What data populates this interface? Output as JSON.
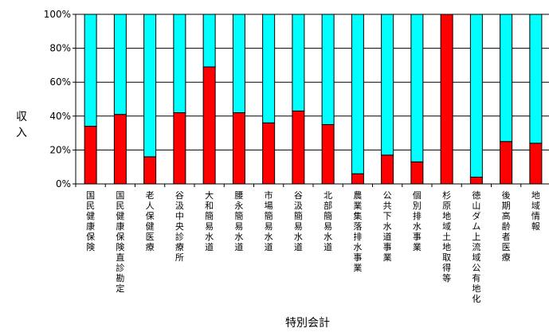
{
  "chart_data": {
    "type": "bar",
    "stacked": true,
    "percent": true,
    "ylabel": "収入",
    "xlabel": "特別会計",
    "ylim": [
      0,
      100
    ],
    "yticks": [
      "0%",
      "20%",
      "40%",
      "60%",
      "80%",
      "100%"
    ],
    "grid": true,
    "categories": [
      "国民健康保険",
      "国民健康保険直診勘定",
      "老人保健医療",
      "谷汲中央診療所",
      "大和簡易水道",
      "腰永簡易水道",
      "市場簡易水道",
      "谷汲簡易水道",
      "北部簡易水道",
      "農業集落排水事業",
      "公共下水道事業",
      "個別排水事業",
      "杉原地域土地取得等",
      "徳山ダム上流域公有地化",
      "後期高齢者医療",
      "地域情報"
    ],
    "series": [
      {
        "color": "#ff0000",
        "values": [
          34,
          41,
          16,
          42,
          69,
          42,
          36,
          43,
          35,
          6,
          17,
          13,
          100,
          4,
          25,
          24
        ]
      },
      {
        "color": "#00ffff",
        "values": [
          66,
          59,
          84,
          58,
          31,
          58,
          64,
          57,
          65,
          94,
          83,
          87,
          0,
          96,
          75,
          76
        ]
      }
    ]
  }
}
